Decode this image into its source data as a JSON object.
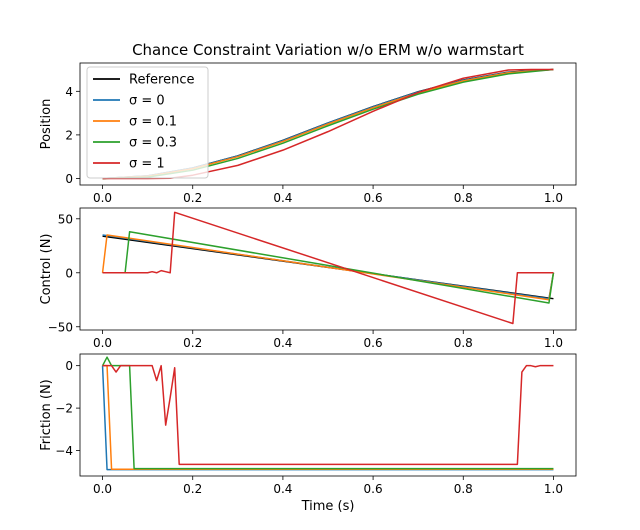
{
  "figure": {
    "title": "Chance Constraint Variation w/o ERM w/o warmstart",
    "xlabel": "Time (s)"
  },
  "colors": {
    "reference": "#000000",
    "sigma_0": "#1f77b4",
    "sigma_0_1": "#ff7f0e",
    "sigma_0_3": "#2ca02c",
    "sigma_1": "#d62728"
  },
  "legend": {
    "placement": "upper-left",
    "entries": [
      {
        "key": "reference",
        "label": "Reference"
      },
      {
        "key": "sigma_0",
        "label": "σ = 0"
      },
      {
        "key": "sigma_0_1",
        "label": "σ = 0.1"
      },
      {
        "key": "sigma_0_3",
        "label": "σ = 0.3"
      },
      {
        "key": "sigma_1",
        "label": "σ = 1"
      }
    ]
  },
  "chart_data": [
    {
      "type": "line",
      "ylabel": "Position",
      "xlim": [
        -0.05,
        1.05
      ],
      "ylim": [
        -0.3,
        5.3
      ],
      "xticks": [
        0.0,
        0.2,
        0.4,
        0.6,
        0.8,
        1.0
      ],
      "xtick_labels": [
        "0.0",
        "0.2",
        "0.4",
        "0.6",
        "0.8",
        "1.0"
      ],
      "yticks": [
        0,
        2,
        4
      ],
      "ytick_labels": [
        "0",
        "2",
        "4"
      ],
      "series": [
        {
          "key": "reference",
          "name": "Reference",
          "x": [
            0,
            0.1,
            0.2,
            0.3,
            0.4,
            0.5,
            0.6,
            0.7,
            0.8,
            0.9,
            1.0
          ],
          "y": [
            0,
            0.12,
            0.48,
            1.04,
            1.75,
            2.55,
            3.3,
            3.98,
            4.52,
            4.88,
            5.0
          ]
        },
        {
          "key": "sigma_0",
          "name": "σ = 0",
          "x": [
            0,
            0.1,
            0.2,
            0.3,
            0.4,
            0.5,
            0.6,
            0.7,
            0.8,
            0.9,
            1.0
          ],
          "y": [
            0,
            0.12,
            0.48,
            1.03,
            1.74,
            2.54,
            3.29,
            3.97,
            4.51,
            4.87,
            5.0
          ]
        },
        {
          "key": "sigma_0_1",
          "name": "σ = 0.1",
          "x": [
            0,
            0.1,
            0.2,
            0.3,
            0.4,
            0.5,
            0.6,
            0.7,
            0.8,
            0.9,
            1.0
          ],
          "y": [
            0,
            0.1,
            0.45,
            1.0,
            1.7,
            2.5,
            3.25,
            3.93,
            4.48,
            4.85,
            5.0
          ]
        },
        {
          "key": "sigma_0_3",
          "name": "σ = 0.3",
          "x": [
            0,
            0.1,
            0.2,
            0.3,
            0.4,
            0.5,
            0.6,
            0.7,
            0.8,
            0.9,
            1.0
          ],
          "y": [
            0,
            0.06,
            0.38,
            0.92,
            1.62,
            2.42,
            3.18,
            3.87,
            4.42,
            4.8,
            5.0
          ]
        },
        {
          "key": "sigma_1",
          "name": "σ = 1",
          "x": [
            0,
            0.1,
            0.15,
            0.2,
            0.3,
            0.4,
            0.5,
            0.6,
            0.7,
            0.8,
            0.9,
            0.95,
            1.0
          ],
          "y": [
            0,
            0.0,
            0.01,
            0.15,
            0.6,
            1.3,
            2.15,
            3.08,
            3.95,
            4.6,
            4.98,
            5.0,
            5.0
          ]
        }
      ]
    },
    {
      "type": "line",
      "ylabel": "Control (N)",
      "xlim": [
        -0.05,
        1.05
      ],
      "ylim": [
        -53,
        60
      ],
      "xticks": [
        0.0,
        0.2,
        0.4,
        0.6,
        0.8,
        1.0
      ],
      "xtick_labels": [
        "0.0",
        "0.2",
        "0.4",
        "0.6",
        "0.8",
        "1.0"
      ],
      "yticks": [
        -50,
        0,
        50
      ],
      "ytick_labels": [
        "−50",
        "0",
        "50"
      ],
      "series": [
        {
          "key": "reference",
          "name": "Reference",
          "x": [
            0,
            1.0
          ],
          "y": [
            34,
            -24
          ]
        },
        {
          "key": "sigma_0",
          "name": "σ = 0",
          "x": [
            0,
            0.99,
            1.0
          ],
          "y": [
            35,
            -24,
            0
          ]
        },
        {
          "key": "sigma_0_1",
          "name": "σ = 0.1",
          "x": [
            0,
            0.01,
            0.99,
            1.0
          ],
          "y": [
            0,
            35,
            -25,
            0
          ]
        },
        {
          "key": "sigma_0_3",
          "name": "σ = 0.3",
          "x": [
            0,
            0.05,
            0.06,
            0.99,
            1.0
          ],
          "y": [
            0,
            0,
            38,
            -28,
            0
          ]
        },
        {
          "key": "sigma_1",
          "name": "σ = 1",
          "x": [
            0,
            0.1,
            0.11,
            0.12,
            0.13,
            0.14,
            0.15,
            0.16,
            0.91,
            0.92,
            0.95,
            1.0
          ],
          "y": [
            0,
            0,
            1,
            0,
            2,
            1,
            0,
            56,
            -47,
            0,
            0,
            0
          ]
        }
      ]
    },
    {
      "type": "line",
      "ylabel": "Friction (N)",
      "xlim": [
        -0.05,
        1.05
      ],
      "ylim": [
        -5.2,
        0.55
      ],
      "xticks": [
        0.0,
        0.2,
        0.4,
        0.6,
        0.8,
        1.0
      ],
      "xtick_labels": [
        "0.0",
        "0.2",
        "0.4",
        "0.6",
        "0.8",
        "1.0"
      ],
      "yticks": [
        -4,
        -2,
        0
      ],
      "ytick_labels": [
        "−4",
        "−2",
        "0"
      ],
      "series": [
        {
          "key": "sigma_0",
          "name": "σ = 0",
          "x": [
            0,
            0.01,
            1.0
          ],
          "y": [
            0,
            -4.9,
            -4.9
          ]
        },
        {
          "key": "sigma_0_1",
          "name": "σ = 0.1",
          "x": [
            0,
            0.01,
            0.02,
            1.0
          ],
          "y": [
            0,
            0,
            -4.88,
            -4.88
          ]
        },
        {
          "key": "sigma_0_3",
          "name": "σ = 0.3",
          "x": [
            0,
            0.01,
            0.02,
            0.03,
            0.04,
            0.05,
            0.06,
            0.07,
            1.0
          ],
          "y": [
            0,
            0.4,
            0.0,
            0,
            0,
            0,
            0,
            -4.85,
            -4.85
          ]
        },
        {
          "key": "sigma_1",
          "name": "σ = 1",
          "x": [
            0,
            0.02,
            0.03,
            0.04,
            0.05,
            0.06,
            0.07,
            0.08,
            0.09,
            0.1,
            0.11,
            0.12,
            0.13,
            0.14,
            0.15,
            0.16,
            0.17,
            0.92,
            0.93,
            0.94,
            0.95,
            0.96,
            0.97,
            0.98,
            1.0
          ],
          "y": [
            0,
            0,
            -0.3,
            0,
            0,
            0,
            0,
            0,
            0,
            0,
            0,
            -0.7,
            0,
            -2.8,
            -1.5,
            -0.1,
            -4.65,
            -4.65,
            -0.3,
            0,
            0,
            -0.05,
            0,
            0,
            0
          ]
        }
      ]
    }
  ]
}
